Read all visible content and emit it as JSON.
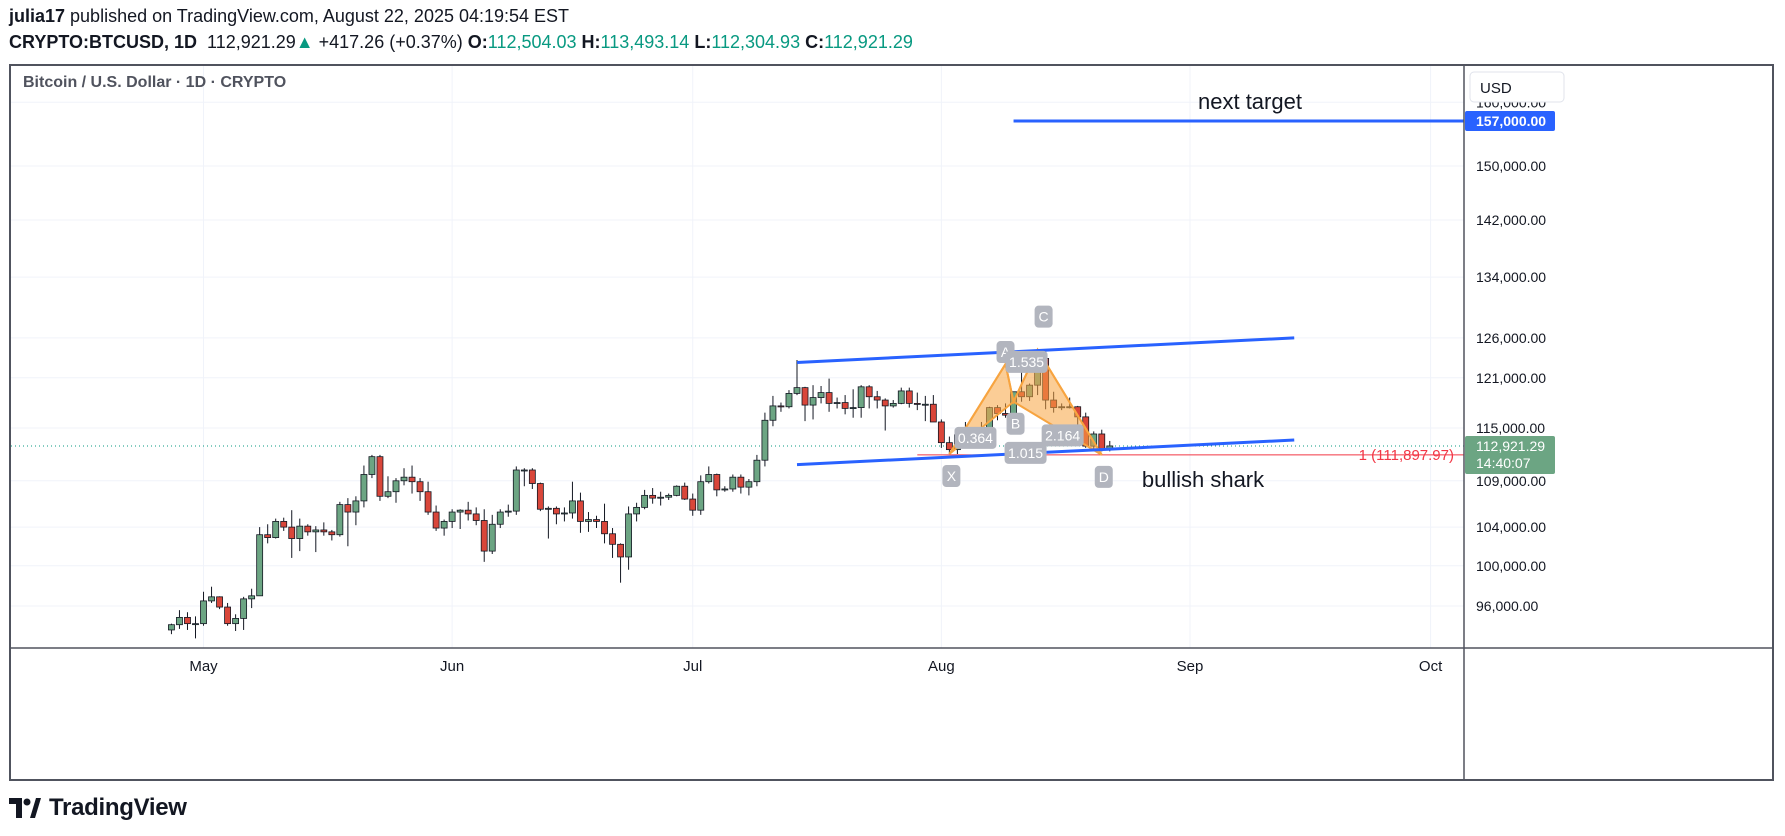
{
  "header": {
    "publisher": "julia17",
    "published_text": " published on TradingView.com, August 22, 2025 04:19:54 EST",
    "symbol": "CRYPTO:BTCUSD, 1D",
    "price": "112,921.29",
    "change_arrow": "▲",
    "change": "+417.26 (+0.37%)",
    "o_label": "O:",
    "o_value": "112,504.03",
    "h_label": "H:",
    "h_value": "113,493.14",
    "l_label": "L:",
    "l_value": "112,304.93",
    "c_label": "C:",
    "c_value": "112,921.29"
  },
  "chart": {
    "legend": "Bitcoin / U.S. Dollar · 1D · CRYPTO",
    "currency": "USD",
    "colors": {
      "up": "#26a69a",
      "up_fill": "#6ca583",
      "down": "#ef5350",
      "down_fill": "#d9463a",
      "trendline": "#2962ff",
      "pattern": "#f7a440",
      "label_bg": "#b2b5be",
      "target_tag": "#2962ff",
      "last_tag": "#6ca583",
      "fib_line": "#f23645"
    }
  },
  "annotations": {
    "next_target": "next target",
    "bullish_shark": "bullish shark",
    "target_price_tag": "157,000.00",
    "last_price_tag": "112,921.29",
    "countdown_tag": "14:40:07",
    "fib_label": "1 (111,897.97)",
    "points": [
      "X",
      "A",
      "B",
      "C",
      "D"
    ],
    "ratios": [
      "0.364",
      "1.535",
      "2.164",
      "1.015"
    ]
  },
  "footer": {
    "brand": "TradingView",
    "logo_icon": "tradingview-logo-icon"
  },
  "chart_data": {
    "type": "candlestick",
    "title": "Bitcoin / U.S. Dollar · 1D · CRYPTO",
    "xlabel": "",
    "ylabel": "USD",
    "x_ticks": [
      "May",
      "Jun",
      "Jul",
      "Aug",
      "Sep",
      "Oct"
    ],
    "y_ticks": [
      96000,
      100000,
      104000,
      109000,
      115000,
      121000,
      126000,
      134000,
      142000,
      150000,
      160000
    ],
    "y_tick_labels": [
      "96,000.00",
      "100,000.00",
      "104,000.00",
      "109,000.00",
      "115,000.00",
      "121,000.00",
      "126,000.00",
      "134,000.00",
      "142,000.00",
      "150,000.00",
      "160,000.00"
    ],
    "ylim": [
      92000,
      166000
    ],
    "scale": "log",
    "grid": true,
    "candles_ohlc": [
      [
        "2025-04-27",
        93700,
        94300,
        93300,
        94200
      ],
      [
        "2025-04-28",
        94200,
        95600,
        93800,
        94900
      ],
      [
        "2025-04-29",
        94900,
        95400,
        93700,
        94300
      ],
      [
        "2025-04-30",
        94300,
        95000,
        92900,
        94300
      ],
      [
        "2025-05-01",
        94300,
        97400,
        94100,
        96500
      ],
      [
        "2025-05-02",
        96500,
        97900,
        96300,
        96900
      ],
      [
        "2025-05-03",
        96900,
        96950,
        95700,
        95900
      ],
      [
        "2025-05-04",
        95900,
        96300,
        94100,
        94300
      ],
      [
        "2025-05-05",
        94300,
        95200,
        93600,
        94800
      ],
      [
        "2025-05-06",
        94800,
        96900,
        93700,
        96700
      ],
      [
        "2025-05-07",
        96700,
        97700,
        95800,
        97000
      ],
      [
        "2025-05-08",
        97000,
        104000,
        97000,
        103200
      ],
      [
        "2025-05-09",
        103200,
        104300,
        102300,
        102900
      ],
      [
        "2025-05-10",
        102900,
        104900,
        102800,
        104600
      ],
      [
        "2025-05-11",
        104600,
        105000,
        103600,
        104000
      ],
      [
        "2025-05-12",
        104000,
        105800,
        100800,
        102800
      ],
      [
        "2025-05-13",
        102800,
        104900,
        101500,
        104100
      ],
      [
        "2025-05-14",
        104100,
        104300,
        103100,
        103500
      ],
      [
        "2025-05-15",
        103500,
        104100,
        101400,
        103700
      ],
      [
        "2025-05-16",
        103700,
        104500,
        103100,
        103500
      ],
      [
        "2025-05-17",
        103500,
        103700,
        102600,
        103200
      ],
      [
        "2025-05-18",
        103200,
        106700,
        103000,
        106400
      ],
      [
        "2025-05-19",
        106400,
        107100,
        102000,
        105600
      ],
      [
        "2025-05-20",
        105600,
        107300,
        104200,
        106800
      ],
      [
        "2025-05-21",
        106800,
        110700,
        106100,
        109700
      ],
      [
        "2025-05-22",
        109700,
        111900,
        109300,
        111700
      ],
      [
        "2025-05-23",
        111700,
        111900,
        106800,
        107300
      ],
      [
        "2025-05-24",
        107300,
        109500,
        107100,
        107800
      ],
      [
        "2025-05-25",
        107800,
        109300,
        106600,
        109000
      ],
      [
        "2025-05-26",
        109000,
        110400,
        108500,
        109400
      ],
      [
        "2025-05-27",
        109400,
        110700,
        107600,
        108900
      ],
      [
        "2025-05-28",
        108900,
        109300,
        106800,
        107800
      ],
      [
        "2025-05-29",
        107800,
        108900,
        105300,
        105600
      ],
      [
        "2025-05-30",
        105600,
        106300,
        103600,
        103900
      ],
      [
        "2025-05-31",
        103900,
        104800,
        103100,
        104600
      ],
      [
        "2025-06-01",
        104600,
        105900,
        103900,
        105600
      ],
      [
        "2025-06-02",
        105600,
        105900,
        103800,
        105800
      ],
      [
        "2025-06-03",
        105800,
        106700,
        104700,
        105400
      ],
      [
        "2025-06-04",
        105400,
        106100,
        104200,
        104700
      ],
      [
        "2025-06-05",
        104700,
        105900,
        100400,
        101500
      ],
      [
        "2025-06-06",
        101500,
        105300,
        101200,
        104300
      ],
      [
        "2025-06-07",
        104300,
        105900,
        103900,
        105600
      ],
      [
        "2025-06-08",
        105600,
        106400,
        105100,
        105700
      ],
      [
        "2025-06-09",
        105700,
        110600,
        105300,
        110200
      ],
      [
        "2025-06-10",
        110200,
        110400,
        108400,
        110200
      ],
      [
        "2025-06-11",
        110200,
        110400,
        108100,
        108700
      ],
      [
        "2025-06-12",
        108700,
        108800,
        105700,
        105900
      ],
      [
        "2025-06-13",
        105900,
        106200,
        102800,
        106000
      ],
      [
        "2025-06-14",
        106000,
        106200,
        104300,
        105400
      ],
      [
        "2025-06-15",
        105400,
        106100,
        104600,
        105500
      ],
      [
        "2025-06-16",
        105500,
        108900,
        104900,
        106800
      ],
      [
        "2025-06-17",
        106800,
        107700,
        103400,
        104600
      ],
      [
        "2025-06-18",
        104600,
        105600,
        103500,
        104800
      ],
      [
        "2025-06-19",
        104800,
        105200,
        103900,
        104600
      ],
      [
        "2025-06-20",
        104600,
        106500,
        102300,
        103300
      ],
      [
        "2025-06-21",
        103300,
        103900,
        100800,
        102200
      ],
      [
        "2025-06-22",
        102200,
        102300,
        98300,
        100900
      ],
      [
        "2025-06-23",
        100900,
        106200,
        99600,
        105400
      ],
      [
        "2025-06-24",
        105400,
        106600,
        104600,
        106100
      ],
      [
        "2025-06-25",
        106100,
        108000,
        105900,
        107400
      ],
      [
        "2025-06-26",
        107400,
        108200,
        106500,
        107100
      ],
      [
        "2025-06-27",
        107100,
        107800,
        106300,
        107200
      ],
      [
        "2025-06-28",
        107200,
        107600,
        106900,
        107400
      ],
      [
        "2025-06-29",
        107400,
        108500,
        107300,
        108400
      ],
      [
        "2025-06-30",
        108400,
        108800,
        106900,
        107000
      ],
      [
        "2025-07-01",
        107000,
        107600,
        105200,
        105800
      ],
      [
        "2025-07-02",
        105800,
        109600,
        105300,
        108900
      ],
      [
        "2025-07-03",
        108900,
        110600,
        108700,
        109700
      ],
      [
        "2025-07-04",
        109700,
        109800,
        107300,
        108000
      ],
      [
        "2025-07-05",
        108000,
        108400,
        107800,
        108100
      ],
      [
        "2025-07-06",
        108100,
        109700,
        107800,
        109400
      ],
      [
        "2025-07-07",
        109400,
        109700,
        107600,
        108300
      ],
      [
        "2025-07-08",
        108300,
        109200,
        107400,
        108900
      ],
      [
        "2025-07-09",
        108900,
        111900,
        108400,
        111300
      ],
      [
        "2025-07-10",
        111300,
        116800,
        110600,
        115900
      ],
      [
        "2025-07-11",
        115900,
        118800,
        115200,
        117600
      ],
      [
        "2025-07-12",
        117600,
        118000,
        116900,
        117500
      ],
      [
        "2025-07-13",
        117500,
        119500,
        117300,
        119100
      ],
      [
        "2025-07-14",
        119100,
        123200,
        118900,
        119800
      ],
      [
        "2025-07-15",
        119800,
        119900,
        115800,
        117700
      ],
      [
        "2025-07-16",
        117700,
        120100,
        116000,
        118600
      ],
      [
        "2025-07-17",
        118600,
        120000,
        117900,
        119200
      ],
      [
        "2025-07-18",
        119200,
        120900,
        116900,
        117900
      ],
      [
        "2025-07-19",
        117900,
        118600,
        117300,
        118000
      ],
      [
        "2025-07-20",
        118000,
        118900,
        116600,
        117300
      ],
      [
        "2025-07-21",
        117300,
        119600,
        116200,
        117400
      ],
      [
        "2025-07-22",
        117400,
        120100,
        116200,
        119900
      ],
      [
        "2025-07-23",
        119900,
        120100,
        117300,
        118700
      ],
      [
        "2025-07-24",
        118700,
        119400,
        117300,
        118300
      ],
      [
        "2025-07-25",
        118300,
        118500,
        114700,
        117600
      ],
      [
        "2025-07-26",
        117600,
        118300,
        117400,
        117900
      ],
      [
        "2025-07-27",
        117900,
        119800,
        117800,
        119400
      ],
      [
        "2025-07-28",
        119400,
        119800,
        117400,
        117900
      ],
      [
        "2025-07-29",
        117900,
        119200,
        117100,
        117800
      ],
      [
        "2025-07-30",
        117800,
        118800,
        115800,
        117800
      ],
      [
        "2025-07-31",
        117800,
        118900,
        115700,
        115700
      ],
      [
        "2025-08-01",
        115700,
        116000,
        112700,
        113300
      ],
      [
        "2025-08-02",
        113300,
        114000,
        112000,
        112500
      ],
      [
        "2025-08-03",
        112500,
        114700,
        112000,
        114200
      ],
      [
        "2025-08-04",
        114200,
        115700,
        114100,
        115000
      ],
      [
        "2025-08-05",
        115000,
        115100,
        112700,
        114100
      ],
      [
        "2025-08-06",
        114100,
        115700,
        113400,
        115000
      ],
      [
        "2025-08-07",
        115000,
        117500,
        114300,
        117400
      ],
      [
        "2025-08-08",
        117400,
        117700,
        115900,
        116700
      ],
      [
        "2025-08-09",
        116700,
        117900,
        116200,
        116500
      ],
      [
        "2025-08-10",
        116500,
        119300,
        116500,
        119300
      ],
      [
        "2025-08-11",
        119300,
        122200,
        118100,
        118700
      ],
      [
        "2025-08-12",
        118700,
        120300,
        118200,
        120100
      ],
      [
        "2025-08-13",
        120100,
        123700,
        118900,
        123400
      ],
      [
        "2025-08-14",
        123400,
        124500,
        117200,
        118300
      ],
      [
        "2025-08-15",
        118300,
        119300,
        116800,
        117400
      ],
      [
        "2025-08-16",
        117400,
        117900,
        117100,
        117500
      ],
      [
        "2025-08-17",
        117500,
        118600,
        117300,
        117500
      ],
      [
        "2025-08-18",
        117500,
        117600,
        114800,
        116300
      ],
      [
        "2025-08-19",
        116300,
        116800,
        112700,
        112900
      ],
      [
        "2025-08-20",
        112900,
        114600,
        112400,
        114300
      ],
      [
        "2025-08-21",
        114300,
        114800,
        112300,
        112500
      ],
      [
        "2025-08-22",
        112504,
        113493,
        112305,
        112921
      ]
    ],
    "trendlines": [
      {
        "from": [
          "2025-07-14",
          122900
        ],
        "to": [
          "2025-09-14",
          126000
        ]
      },
      {
        "from": [
          "2025-07-14",
          110800
        ],
        "to": [
          "2025-09-14",
          113600
        ]
      },
      {
        "from": [
          "2025-08-10",
          157000
        ],
        "to": [
          "2025-10-31",
          157000
        ]
      }
    ],
    "harmonic_pattern": {
      "name": "bullish shark",
      "X": [
        "2025-08-02",
        112000
      ],
      "A": [
        "2025-08-09",
        122700
      ],
      "B": [
        "2025-08-10",
        118100
      ],
      "C": [
        "2025-08-13",
        124500
      ],
      "D": [
        "2025-08-21",
        111900
      ]
    },
    "fib_level": {
      "label": "1 (111,897.97)",
      "value": 111897.97
    },
    "target_level": 157000,
    "last_price": 112921.29
  }
}
